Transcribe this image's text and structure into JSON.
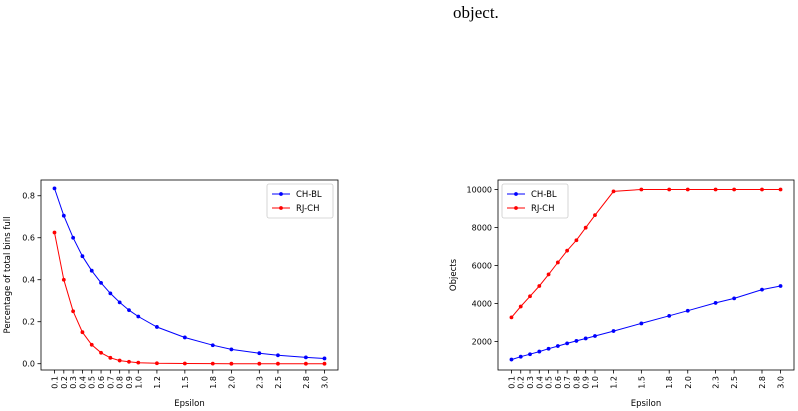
{
  "caption": {
    "text": "object."
  },
  "chart_data": [
    {
      "type": "line",
      "xlabel": "Epsilon",
      "ylabel": "Percentage of total bins full",
      "ylim": [
        -0.03,
        0.875
      ],
      "yticks": [
        0.0,
        0.2,
        0.4,
        0.6,
        0.8
      ],
      "ytick_labels": [
        "0.0",
        "0.2",
        "0.4",
        "0.6",
        "0.8"
      ],
      "legend_position": "top-right",
      "x": [
        0.1,
        0.2,
        0.3,
        0.4,
        0.5,
        0.6,
        0.7,
        0.8,
        0.9,
        1.0,
        1.2,
        1.5,
        1.8,
        2.0,
        2.3,
        2.5,
        2.8,
        3.0
      ],
      "xtick_labels": [
        "0.1",
        "0.2",
        "0.3",
        "0.4",
        "0.5",
        "0.6",
        "0.7",
        "0.8",
        "0.9",
        "1.0",
        "1.2",
        "1.5",
        "1.8",
        "2.0",
        "2.3",
        "2.5",
        "2.8",
        "3.0"
      ],
      "series": [
        {
          "name": "CH-BL",
          "color": "#0000ff",
          "values": [
            0.835,
            0.705,
            0.6,
            0.512,
            0.443,
            0.385,
            0.335,
            0.292,
            0.255,
            0.225,
            0.175,
            0.125,
            0.088,
            0.068,
            0.05,
            0.04,
            0.03,
            0.025
          ]
        },
        {
          "name": "RJ-CH",
          "color": "#ff0000",
          "values": [
            0.625,
            0.4,
            0.25,
            0.15,
            0.09,
            0.052,
            0.028,
            0.015,
            0.009,
            0.005,
            0.002,
            0.001,
            0.0005,
            0.0,
            0.0,
            0.0,
            0.0,
            0.0
          ]
        }
      ]
    },
    {
      "type": "line",
      "xlabel": "Epsilon",
      "ylabel": "Objects",
      "ylim": [
        500,
        10500
      ],
      "yticks": [
        2000,
        4000,
        6000,
        8000,
        10000
      ],
      "ytick_labels": [
        "2000",
        "4000",
        "6000",
        "8000",
        "10000"
      ],
      "legend_position": "top-left",
      "x": [
        0.1,
        0.2,
        0.3,
        0.4,
        0.5,
        0.6,
        0.7,
        0.8,
        0.9,
        1.0,
        1.2,
        1.5,
        1.8,
        2.0,
        2.3,
        2.5,
        2.8,
        3.0
      ],
      "xtick_labels": [
        "0.1",
        "0.2",
        "0.3",
        "0.4",
        "0.5",
        "0.6",
        "0.7",
        "0.8",
        "0.9",
        "1.0",
        "1.2",
        "1.5",
        "1.8",
        "2.0",
        "2.3",
        "2.5",
        "2.8",
        "3.0"
      ],
      "series": [
        {
          "name": "CH-BL",
          "color": "#0000ff",
          "values": [
            1050,
            1200,
            1330,
            1470,
            1620,
            1760,
            1900,
            2030,
            2160,
            2290,
            2550,
            2950,
            3350,
            3620,
            4030,
            4270,
            4730,
            4920
          ]
        },
        {
          "name": "RJ-CH",
          "color": "#ff0000",
          "values": [
            3270,
            3840,
            4380,
            4920,
            5530,
            6160,
            6780,
            7330,
            7990,
            8650,
            9900,
            10000,
            10000,
            10000,
            10000,
            10000,
            10000,
            10000
          ]
        }
      ]
    }
  ]
}
